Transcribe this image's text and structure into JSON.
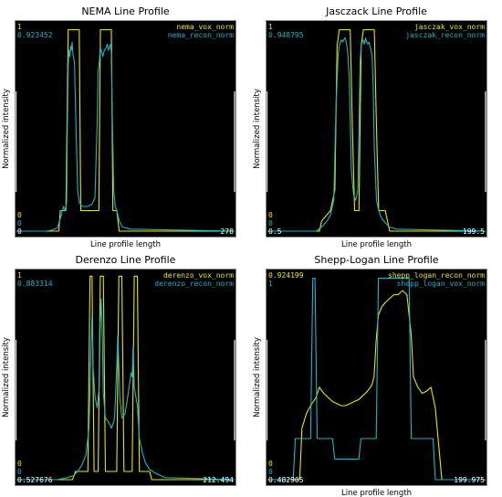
{
  "colors": {
    "background": "#000000",
    "yellow": "#e6e600",
    "cyan": "#1fb2c8",
    "white": "#ffffff",
    "frame": "#888888",
    "bracket": "#c8c8c8"
  },
  "chart_data": [
    {
      "type": "line",
      "title": "NEMA Line Profile",
      "xlabel": "Line profile length",
      "ylabel": "Normalized intensity",
      "xlim": [
        0,
        278
      ],
      "x_max_label": "278",
      "grid": false,
      "legend_position": "top-right",
      "corner_labels": {
        "top": [
          "1",
          "0.923452"
        ],
        "bottom": [
          "0",
          "0",
          "0"
        ]
      },
      "series": [
        {
          "name": "nema_vox_norm",
          "color": "yellow",
          "points": [
            [
              0,
              0
            ],
            [
              54,
              0
            ],
            [
              56,
              0.1
            ],
            [
              63,
              0.1
            ],
            [
              66,
              0.98
            ],
            [
              80,
              0.98
            ],
            [
              82,
              0.1
            ],
            [
              105,
              0.1
            ],
            [
              107,
              0.98
            ],
            [
              121,
              0.98
            ],
            [
              123,
              0.1
            ],
            [
              128,
              0.1
            ],
            [
              131,
              0
            ],
            [
              278,
              0
            ]
          ]
        },
        {
          "name": "nema_recon_norm",
          "color": "cyan",
          "points": [
            [
              0,
              0
            ],
            [
              38,
              0
            ],
            [
              45,
              0.005
            ],
            [
              52,
              0.015
            ],
            [
              55,
              0.05
            ],
            [
              58,
              0.09
            ],
            [
              60,
              0.12
            ],
            [
              62,
              0.1
            ],
            [
              64,
              0.14
            ],
            [
              65,
              0.55
            ],
            [
              66,
              0.8
            ],
            [
              67,
              0.88
            ],
            [
              68,
              0.85
            ],
            [
              69,
              0.9
            ],
            [
              70,
              0.88
            ],
            [
              71,
              0.92
            ],
            [
              72,
              0.86
            ],
            [
              73,
              0.84
            ],
            [
              74,
              0.82
            ],
            [
              76,
              0.5
            ],
            [
              78,
              0.2
            ],
            [
              80,
              0.14
            ],
            [
              84,
              0.12
            ],
            [
              90,
              0.12
            ],
            [
              96,
              0.13
            ],
            [
              100,
              0.16
            ],
            [
              103,
              0.55
            ],
            [
              104,
              0.78
            ],
            [
              105,
              0.8
            ],
            [
              106,
              0.84
            ],
            [
              107,
              0.9
            ],
            [
              108,
              0.88
            ],
            [
              109,
              0.87
            ],
            [
              110,
              0.85
            ],
            [
              112,
              0.88
            ],
            [
              114,
              0.89
            ],
            [
              115,
              0.9
            ],
            [
              116,
              0.91
            ],
            [
              117,
              0.88
            ],
            [
              118,
              0.89
            ],
            [
              119,
              0.9
            ],
            [
              120,
              0.91
            ],
            [
              121,
              0.86
            ],
            [
              122,
              0.6
            ],
            [
              124,
              0.2
            ],
            [
              126,
              0.12
            ],
            [
              128,
              0.1
            ],
            [
              131,
              0.05
            ],
            [
              135,
              0.02
            ],
            [
              145,
              0.01
            ],
            [
              278,
              0
            ]
          ]
        }
      ]
    },
    {
      "type": "line",
      "title": "Jasczack Line Profile",
      "xlabel": "Line profile length",
      "ylabel": "Normalized intensity",
      "xlim": [
        0.5,
        199.5
      ],
      "x_min_label": "0.5",
      "x_max_label": "199.5",
      "grid": false,
      "legend_position": "top-right",
      "corner_labels": {
        "top": [
          "1",
          "0.948795"
        ],
        "bottom": [
          "0",
          "0"
        ]
      },
      "series": [
        {
          "name": "jasczak_vox_norm",
          "color": "yellow",
          "points": [
            [
              0.5,
              0
            ],
            [
              48,
              0
            ],
            [
              50,
              0.05
            ],
            [
              58,
              0.1
            ],
            [
              62,
              0.2
            ],
            [
              64,
              0.9
            ],
            [
              66,
              0.98
            ],
            [
              76,
              0.98
            ],
            [
              78,
              0.5
            ],
            [
              80,
              0.1
            ],
            [
              84,
              0.1
            ],
            [
              86,
              0.9
            ],
            [
              88,
              0.98
            ],
            [
              98,
              0.98
            ],
            [
              100,
              0.5
            ],
            [
              102,
              0.1
            ],
            [
              108,
              0.1
            ],
            [
              110,
              0.05
            ],
            [
              112,
              0
            ],
            [
              199.5,
              0
            ]
          ]
        },
        {
          "name": "jasczak_recon_norm",
          "color": "cyan",
          "points": [
            [
              0.5,
              0
            ],
            [
              45,
              0
            ],
            [
              50,
              0.02
            ],
            [
              55,
              0.05
            ],
            [
              58,
              0.08
            ],
            [
              61,
              0.15
            ],
            [
              63,
              0.6
            ],
            [
              65,
              0.86
            ],
            [
              66,
              0.9
            ],
            [
              67,
              0.92
            ],
            [
              68,
              0.93
            ],
            [
              69,
              0.92
            ],
            [
              70,
              0.93
            ],
            [
              71,
              0.94
            ],
            [
              72,
              0.93
            ],
            [
              73,
              0.9
            ],
            [
              74,
              0.85
            ],
            [
              75,
              0.75
            ],
            [
              76,
              0.55
            ],
            [
              77,
              0.3
            ],
            [
              79,
              0.18
            ],
            [
              81,
              0.15
            ],
            [
              83,
              0.2
            ],
            [
              84,
              0.5
            ],
            [
              85,
              0.82
            ],
            [
              86,
              0.9
            ],
            [
              87,
              0.92
            ],
            [
              88,
              0.93
            ],
            [
              89,
              0.91
            ],
            [
              90,
              0.94
            ],
            [
              91,
              0.92
            ],
            [
              92,
              0.91
            ],
            [
              93,
              0.92
            ],
            [
              94,
              0.9
            ],
            [
              95,
              0.88
            ],
            [
              96,
              0.85
            ],
            [
              97,
              0.7
            ],
            [
              98,
              0.4
            ],
            [
              100,
              0.15
            ],
            [
              102,
              0.1
            ],
            [
              104,
              0.07
            ],
            [
              108,
              0.04
            ],
            [
              112,
              0.02
            ],
            [
              118,
              0.01
            ],
            [
              199.5,
              0
            ]
          ]
        }
      ]
    },
    {
      "type": "line",
      "title": "Derenzo Line Profile",
      "xlabel": "",
      "ylabel": "Normalized intensity",
      "xlim": [
        0.527676,
        212.494
      ],
      "x_min_label": "0.527676",
      "x_max_label": "212.494",
      "grid": false,
      "legend_position": "top-right",
      "corner_labels": {
        "top": [
          "1",
          "0.883314"
        ],
        "bottom": [
          "0",
          "0"
        ]
      },
      "series": [
        {
          "name": "derenzo_vox_norm",
          "color": "yellow",
          "points": [
            [
              0.527676,
              0
            ],
            [
              55,
              0
            ],
            [
              58,
              0.04
            ],
            [
              70,
              0.04
            ],
            [
              72,
              0.99
            ],
            [
              74,
              0.99
            ],
            [
              76,
              0.04
            ],
            [
              80,
              0.04
            ],
            [
              82,
              0.99
            ],
            [
              85,
              0.99
            ],
            [
              87,
              0.04
            ],
            [
              98,
              0.04
            ],
            [
              100,
              0.99
            ],
            [
              103,
              0.99
            ],
            [
              105,
              0.04
            ],
            [
              113,
              0.04
            ],
            [
              115,
              0.99
            ],
            [
              118,
              0.99
            ],
            [
              120,
              0.04
            ],
            [
              130,
              0.04
            ],
            [
              132,
              0
            ],
            [
              212.494,
              0
            ]
          ]
        },
        {
          "name": "derenzo_recon_norm",
          "color": "cyan",
          "points": [
            [
              0.527676,
              0
            ],
            [
              40,
              0
            ],
            [
              50,
              0.01
            ],
            [
              56,
              0.02
            ],
            [
              60,
              0.04
            ],
            [
              64,
              0.07
            ],
            [
              68,
              0.12
            ],
            [
              71,
              0.25
            ],
            [
              73,
              0.62
            ],
            [
              74,
              0.8
            ],
            [
              75,
              0.55
            ],
            [
              77,
              0.4
            ],
            [
              79,
              0.35
            ],
            [
              81,
              0.45
            ],
            [
              82,
              0.76
            ],
            [
              83,
              0.88
            ],
            [
              84,
              0.7
            ],
            [
              85,
              0.42
            ],
            [
              87,
              0.3
            ],
            [
              90,
              0.28
            ],
            [
              93,
              0.25
            ],
            [
              96,
              0.3
            ],
            [
              98,
              0.55
            ],
            [
              99,
              0.7
            ],
            [
              100,
              0.56
            ],
            [
              101,
              0.4
            ],
            [
              103,
              0.3
            ],
            [
              106,
              0.32
            ],
            [
              108,
              0.38
            ],
            [
              110,
              0.45
            ],
            [
              112,
              0.52
            ],
            [
              113,
              0.5
            ],
            [
              114,
              0.65
            ],
            [
              115,
              0.45
            ],
            [
              116,
              0.42
            ],
            [
              118,
              0.36
            ],
            [
              120,
              0.2
            ],
            [
              123,
              0.13
            ],
            [
              126,
              0.08
            ],
            [
              130,
              0.05
            ],
            [
              136,
              0.03
            ],
            [
              145,
              0.01
            ],
            [
              212.494,
              0
            ]
          ]
        }
      ]
    },
    {
      "type": "line",
      "title": "Shepp-Logan Line Profile",
      "xlabel": "Line profile length",
      "ylabel": "Normalized intensity",
      "xlim": [
        0.482905,
        199.975
      ],
      "x_min_label": "0.482905",
      "x_max_label": "199.975",
      "grid": false,
      "legend_position": "top-right",
      "corner_labels": {
        "top": [
          "0.924199",
          "1"
        ],
        "bottom": [
          "0",
          "0"
        ]
      },
      "series": [
        {
          "name": "shepp_logan_recon_norm",
          "color": "yellow",
          "points": [
            [
              0.482905,
              0
            ],
            [
              30,
              0
            ],
            [
              32,
              0.25
            ],
            [
              36,
              0.32
            ],
            [
              40,
              0.36
            ],
            [
              45,
              0.4
            ],
            [
              48,
              0.45
            ],
            [
              52,
              0.42
            ],
            [
              56,
              0.4
            ],
            [
              60,
              0.38
            ],
            [
              64,
              0.37
            ],
            [
              68,
              0.36
            ],
            [
              72,
              0.36
            ],
            [
              76,
              0.37
            ],
            [
              80,
              0.38
            ],
            [
              84,
              0.39
            ],
            [
              88,
              0.41
            ],
            [
              92,
              0.43
            ],
            [
              96,
              0.46
            ],
            [
              98,
              0.5
            ],
            [
              100,
              0.68
            ],
            [
              102,
              0.8
            ],
            [
              105,
              0.84
            ],
            [
              108,
              0.86
            ],
            [
              112,
              0.88
            ],
            [
              116,
              0.9
            ],
            [
              120,
              0.9
            ],
            [
              124,
              0.92
            ],
            [
              128,
              0.9
            ],
            [
              132,
              0.7
            ],
            [
              134,
              0.5
            ],
            [
              138,
              0.45
            ],
            [
              142,
              0.42
            ],
            [
              146,
              0.43
            ],
            [
              150,
              0.45
            ],
            [
              152,
              0.4
            ],
            [
              154,
              0.35
            ],
            [
              160,
              0
            ],
            [
              199.975,
              0
            ]
          ]
        },
        {
          "name": "shepp_logan_vox_norm",
          "color": "cyan",
          "points": [
            [
              0.482905,
              0
            ],
            [
              24,
              0
            ],
            [
              26,
              0.2
            ],
            [
              40,
              0.2
            ],
            [
              42,
              0.98
            ],
            [
              44,
              0.98
            ],
            [
              46,
              0.2
            ],
            [
              60,
              0.2
            ],
            [
              62,
              0.1
            ],
            [
              84,
              0.1
            ],
            [
              86,
              0.2
            ],
            [
              100,
              0.2
            ],
            [
              102,
              0.98
            ],
            [
              130,
              0.98
            ],
            [
              132,
              0.2
            ],
            [
              152,
              0.2
            ],
            [
              154,
              0
            ],
            [
              199.975,
              0
            ]
          ]
        }
      ]
    }
  ]
}
